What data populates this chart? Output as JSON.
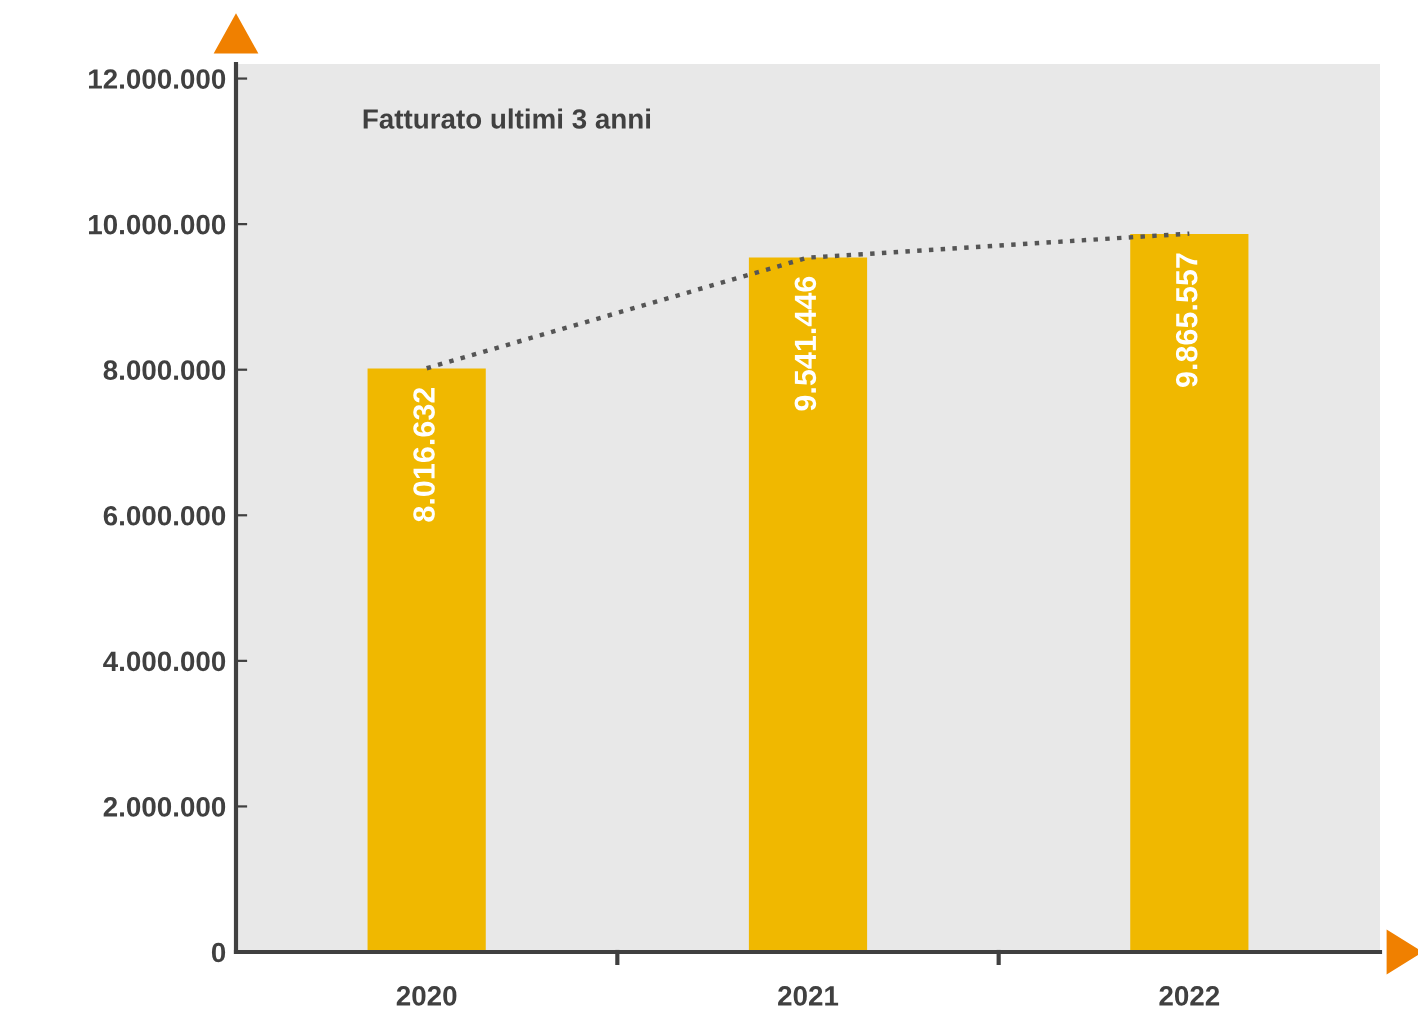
{
  "chart_data": {
    "type": "bar",
    "title": "Fatturato ultimi 3 anni",
    "categories": [
      "2020",
      "2021",
      "2022"
    ],
    "series": [
      {
        "color": "#f0b800",
        "values": [
          8016632,
          9541446,
          9865557
        ],
        "value_labels": [
          "8.016.632",
          "9.541.446",
          "9.865.557"
        ]
      },
      {
        "type": "line",
        "color": "#555555",
        "values": [
          8020000,
          9540000,
          9870000
        ],
        "line_style": "dotted",
        "marker": "none"
      }
    ],
    "ylim": [
      0,
      12200000
    ],
    "yticks": [
      0,
      {
        "value": 2000000,
        "label": "2.000.000"
      },
      {
        "value": 4000000,
        "label": "4.000.000"
      },
      {
        "value": 6000000,
        "label": "6.000.000"
      },
      {
        "value": 8000000,
        "label": "8.000.000"
      },
      {
        "value": 10000000,
        "label": "10.000.000"
      },
      {
        "value": 12000000,
        "label": "12.000.000"
      }
    ],
    "grid": false,
    "legend": false
  }
}
